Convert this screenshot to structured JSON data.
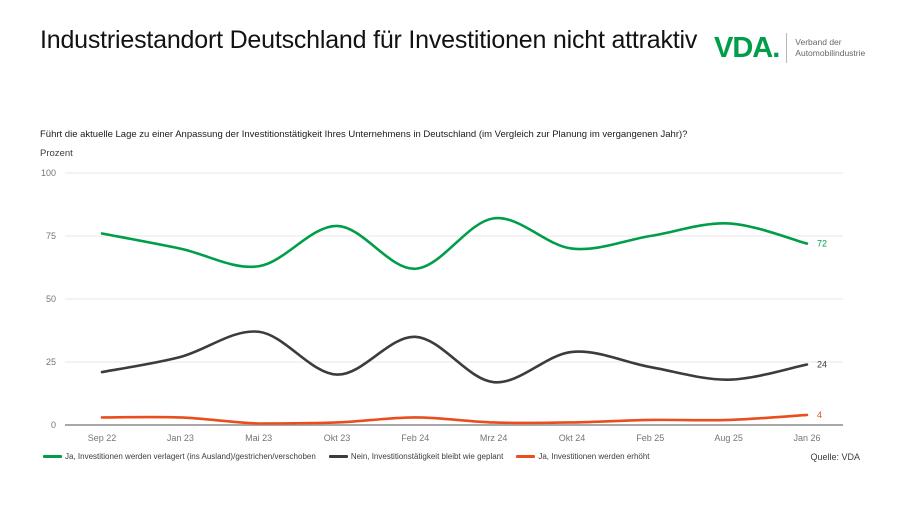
{
  "header": {
    "title": "Industriestandort Deutschland für Investitionen nicht attraktiv",
    "logo": {
      "brand": "VDA.",
      "tagline_line1": "Verband der",
      "tagline_line2": "Automobilindustrie",
      "brand_color": "#009E49"
    }
  },
  "question": "Führt die aktuelle Lage zu einer Anpassung der Investitionstätigkeit Ihres Unternehmens in Deutschland (im Vergleich zur Planung im vergangenen Jahr)?",
  "source": "Quelle: VDA",
  "chart_data": {
    "type": "line",
    "title": "",
    "xlabel": "",
    "ylabel": "Prozent",
    "ylim": [
      0,
      100
    ],
    "yticks": [
      0,
      25,
      50,
      75,
      100
    ],
    "grid": true,
    "legend_position": "bottom",
    "smooth": true,
    "categories": [
      "Sep 22",
      "Jan 23",
      "Mai 23",
      "Okt 23",
      "Feb 24",
      "Mrz 24",
      "Okt 24",
      "Feb 25",
      "Aug 25",
      "Jan 26"
    ],
    "series": [
      {
        "name": "Ja, Investitionen werden verlagert (ins Ausland)/gestrichen/verschoben",
        "color": "#009E49",
        "values": [
          76,
          70,
          63,
          79,
          62,
          82,
          70,
          75,
          80,
          72
        ],
        "end_label": "72"
      },
      {
        "name": "Nein, Investitionstätigkeit bleibt wie geplant",
        "color": "#3C3C3B",
        "values": [
          21,
          27,
          37,
          20,
          35,
          17,
          29,
          23,
          18,
          24
        ],
        "end_label": "24"
      },
      {
        "name": "Ja, Investitionen werden erhöht",
        "color": "#E84F1D",
        "values": [
          3,
          3,
          0,
          1,
          3,
          1,
          1,
          2,
          2,
          4
        ],
        "end_label": "4"
      }
    ],
    "axis_colors": {
      "tick_label": "#757575",
      "gridline": "#e7e7e7",
      "zero_line": "#a8a8a8"
    }
  }
}
